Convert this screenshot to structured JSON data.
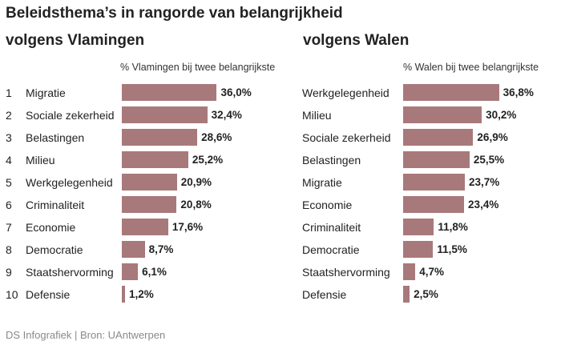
{
  "title": "Beleidsthema’s in rangorde van belangrijkheid",
  "footer": "DS Infografiek | Bron: UAntwerpen",
  "colors": {
    "bar": "#a8797a",
    "text": "#222222",
    "footer": "#8a8a8a"
  },
  "chart_data": [
    {
      "type": "bar",
      "orientation": "horizontal",
      "title": "volgens Vlamingen",
      "xlabel": "% Vlamingen bij twee belangrijkste",
      "show_ranks": true,
      "ranks": [
        "1",
        "2",
        "3",
        "4",
        "5",
        "6",
        "7",
        "8",
        "9",
        "10"
      ],
      "categories": [
        "Migratie",
        "Sociale zekerheid",
        "Belastingen",
        "Milieu",
        "Werkgelegenheid",
        "Criminaliteit",
        "Economie",
        "Democratie",
        "Staatshervorming",
        "Defensie"
      ],
      "values": [
        36.0,
        32.4,
        28.6,
        25.2,
        20.9,
        20.8,
        17.6,
        8.7,
        6.1,
        1.2
      ],
      "value_labels": [
        "36,0%",
        "32,4%",
        "28,6%",
        "25,2%",
        "20,9%",
        "20,8%",
        "17,6%",
        "8,7%",
        "6,1%",
        "1,2%"
      ],
      "xlim": [
        0,
        40
      ],
      "grid": false
    },
    {
      "type": "bar",
      "orientation": "horizontal",
      "title": "volgens Walen",
      "xlabel": "% Walen bij twee belangrijkste",
      "show_ranks": false,
      "categories": [
        "Werkgelegenheid",
        "Milieu",
        "Sociale zekerheid",
        "Belastingen",
        "Migratie",
        "Economie",
        "Criminaliteit",
        "Democratie",
        "Staatshervorming",
        "Defensie"
      ],
      "values": [
        36.8,
        30.2,
        26.9,
        25.5,
        23.7,
        23.4,
        11.8,
        11.5,
        4.7,
        2.5
      ],
      "value_labels": [
        "36,8%",
        "30,2%",
        "26,9%",
        "25,5%",
        "23,7%",
        "23,4%",
        "11,8%",
        "11,5%",
        "4,7%",
        "2,5%"
      ],
      "xlim": [
        0,
        40
      ],
      "grid": false
    }
  ]
}
